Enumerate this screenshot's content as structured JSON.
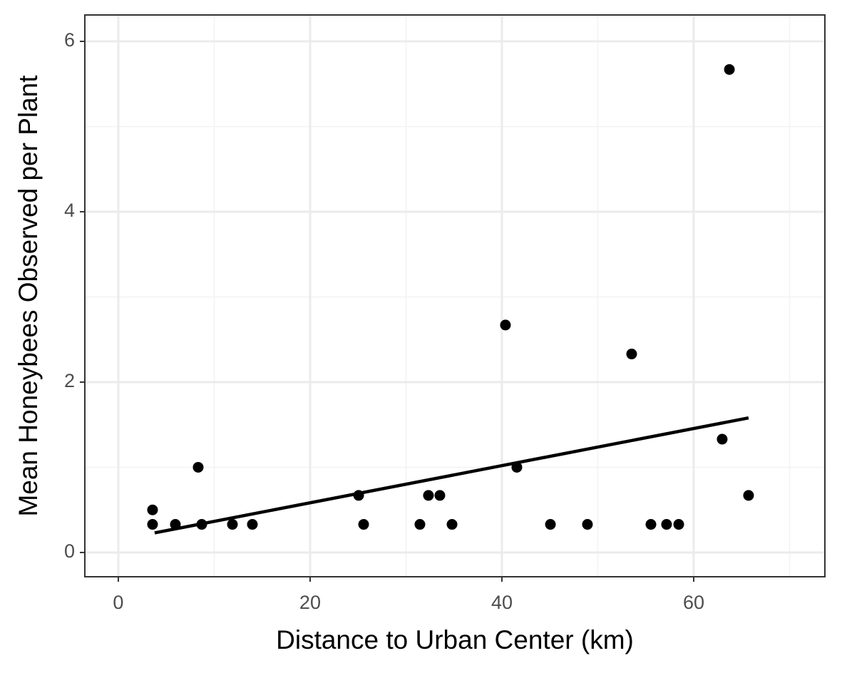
{
  "chart_data": {
    "type": "scatter",
    "x_label": "Distance to Urban Center (km)",
    "y_label": "Mean Honeybees Observed per Plant",
    "x": [
      3.57,
      3.57,
      5.95,
      8.33,
      8.7,
      11.9,
      13.98,
      25.06,
      25.58,
      31.45,
      32.34,
      33.53,
      34.8,
      40.37,
      41.56,
      45.06,
      48.92,
      53.53,
      55.54,
      57.17,
      58.44,
      62.97,
      63.72,
      65.72
    ],
    "values": [
      0.5,
      0.33,
      0.33,
      1,
      0.33,
      0.33,
      0.33,
      0.67,
      0.33,
      0.33,
      0.67,
      0.67,
      0.33,
      2.67,
      1,
      0.33,
      0.33,
      2.33,
      0.33,
      0.33,
      0.33,
      1.33,
      5.67,
      0.67
    ],
    "color": "#000000",
    "fit": {
      "x": [
        3.79,
        65.72
      ],
      "values": [
        0.23,
        1.58
      ],
      "color": "#000000"
    },
    "xlim": [
      -3.49,
      73.68
    ],
    "ylim": [
      -0.285,
      6.31
    ],
    "xticks": [
      0,
      20,
      40,
      60
    ],
    "yticks": [
      0,
      2,
      4,
      6
    ],
    "xminor": [
      10,
      30,
      50,
      70
    ],
    "yminor": [
      1,
      3,
      5
    ],
    "grid": true
  }
}
